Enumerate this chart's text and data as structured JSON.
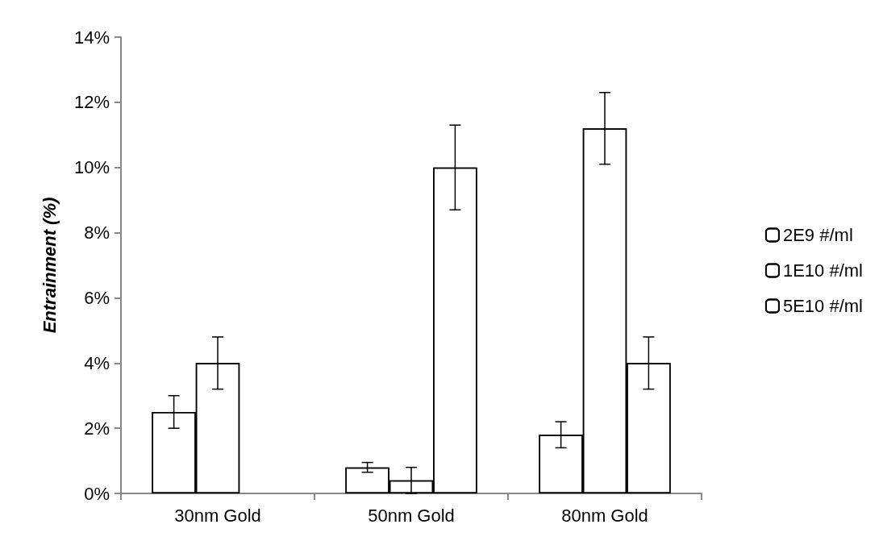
{
  "chart_data": {
    "type": "bar",
    "ylabel": "Entrainment (%)",
    "categories": [
      "30nm Gold",
      "50nm Gold",
      "80nm Gold"
    ],
    "series": [
      {
        "name": "2E9 #/ml",
        "color": "#ffffff",
        "values": [
          2.5,
          0.8,
          1.8
        ],
        "errors": [
          0.5,
          0.15,
          0.4
        ]
      },
      {
        "name": "1E10 #/ml",
        "color": "#ffffff",
        "values": [
          4.0,
          0.4,
          11.2
        ],
        "errors": [
          0.8,
          0.4,
          1.1
        ]
      },
      {
        "name": "5E10 #/ml",
        "color": "#ffffff",
        "values": [
          null,
          10.0,
          4.0
        ],
        "errors": [
          null,
          1.3,
          0.8
        ]
      }
    ],
    "ylim": [
      0,
      14
    ],
    "yticks": [
      {
        "value": 0,
        "label": "0%"
      },
      {
        "value": 2,
        "label": "2%"
      },
      {
        "value": 4,
        "label": "4%"
      },
      {
        "value": 6,
        "label": "6%"
      },
      {
        "value": 8,
        "label": "8%"
      },
      {
        "value": 10,
        "label": "10%"
      },
      {
        "value": 12,
        "label": "12%"
      },
      {
        "value": 14,
        "label": "14%"
      }
    ],
    "grid": false,
    "legend": "right"
  }
}
